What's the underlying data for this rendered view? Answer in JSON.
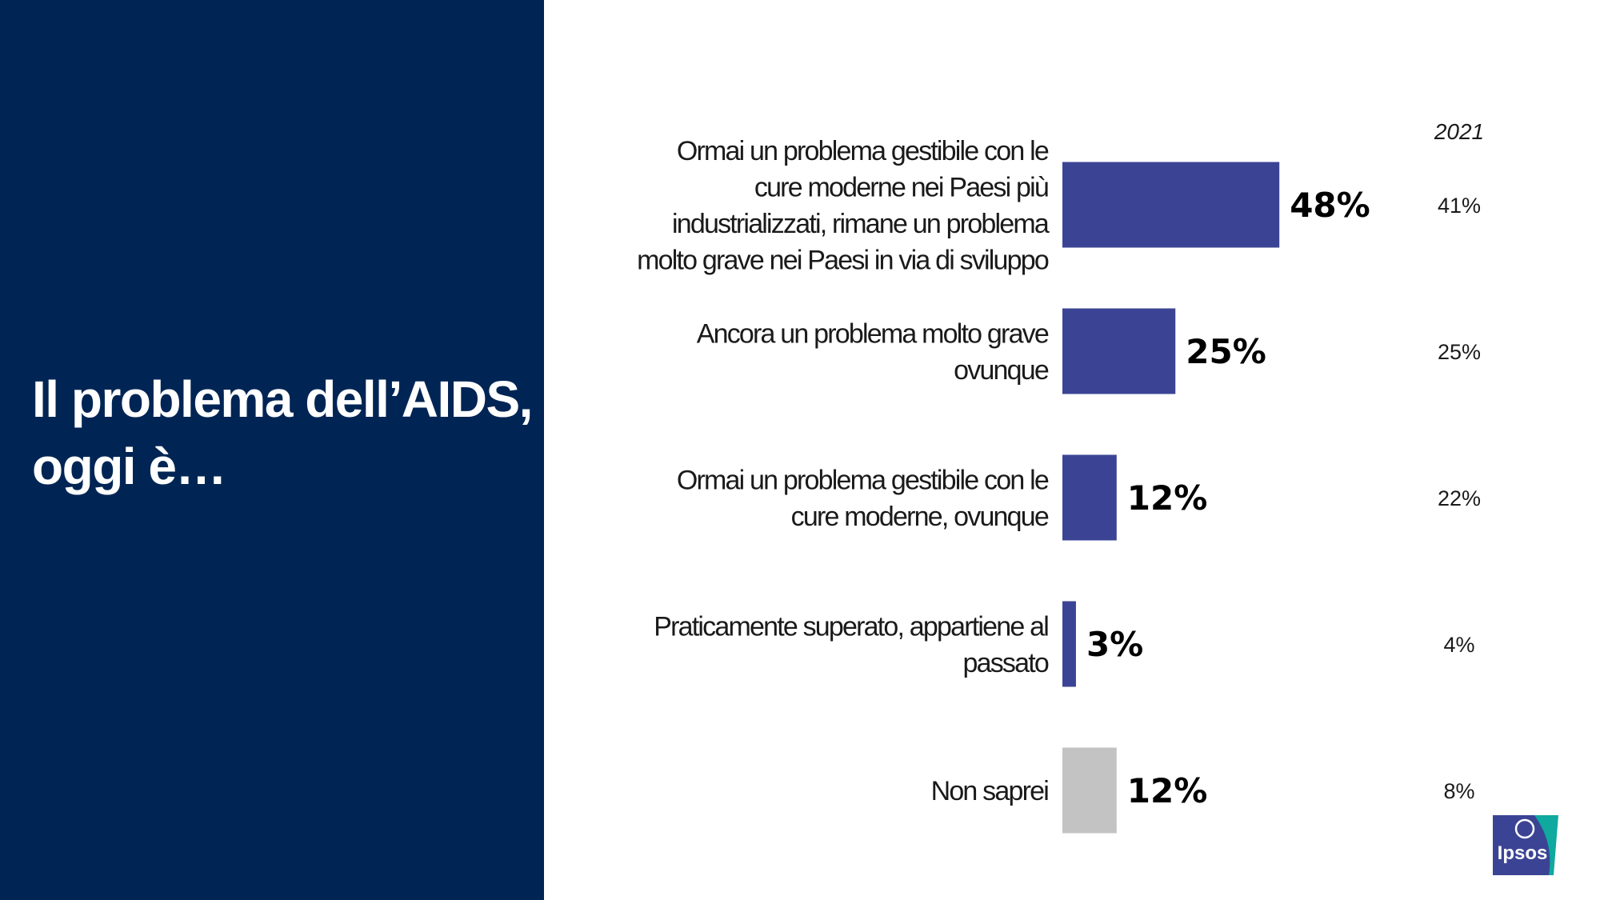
{
  "title": "Il problema dell’AIDS, oggi è…",
  "colors": {
    "panel": "#002554",
    "bar": "#3b4494",
    "bar_dont_know": "#c3c3c3",
    "logo_primary": "#3b4494",
    "logo_accent": "#0fa9a0"
  },
  "logo": {
    "text": "Ipsos"
  },
  "chart_data": {
    "type": "bar",
    "orientation": "horizontal",
    "title": "",
    "xlim": [
      0,
      100
    ],
    "comparison_header": "2021",
    "categories": [
      [
        "Ormai un problema gestibile con le",
        "cure moderne nei Paesi più",
        "industrializzati, rimane un problema",
        "molto grave nei Paesi in via di sviluppo"
      ],
      [
        "Ancora un problema molto grave",
        "ovunque"
      ],
      [
        "Ormai un problema gestibile con le",
        "cure moderne, ovunque"
      ],
      [
        "Praticamente superato, appartiene al",
        "passato"
      ],
      [
        "Non saprei"
      ]
    ],
    "values": [
      48,
      25,
      12,
      3,
      12
    ],
    "value_labels": [
      "48%",
      "25%",
      "12%",
      "3%",
      "12%"
    ],
    "comparison_values": [
      41,
      25,
      22,
      4,
      8
    ],
    "comparison_labels": [
      "41%",
      "25%",
      "22%",
      "4%",
      "8%"
    ],
    "bar_colors": [
      "#3b4494",
      "#3b4494",
      "#3b4494",
      "#3b4494",
      "#c3c3c3"
    ]
  }
}
